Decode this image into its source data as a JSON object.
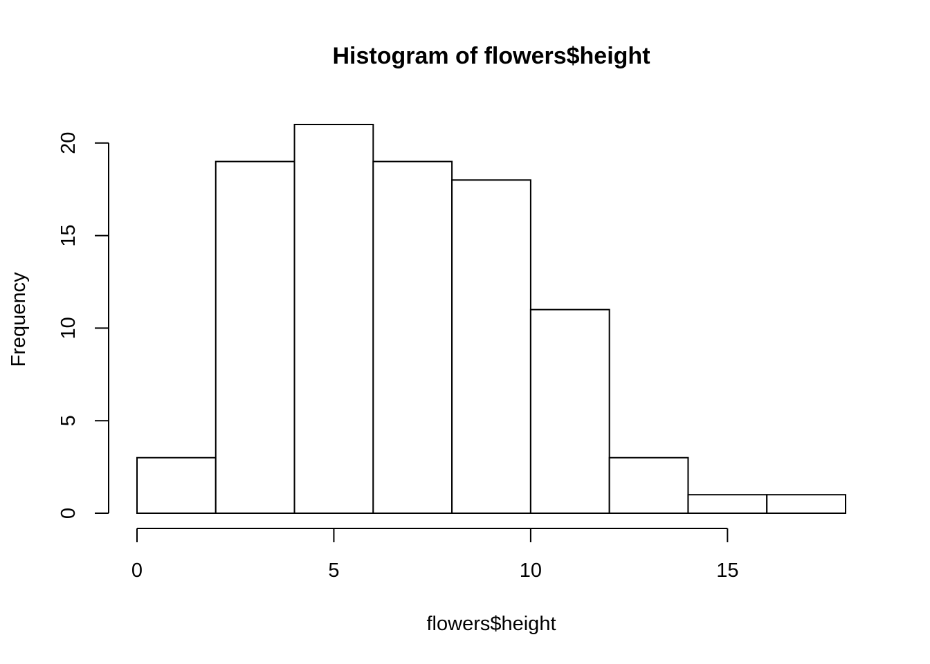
{
  "chart_data": {
    "type": "bar",
    "subtype": "histogram",
    "title": "Histogram of flowers$height",
    "xlabel": "flowers$height",
    "ylabel": "Frequency",
    "bins": [
      {
        "start": 0,
        "end": 2,
        "count": 3
      },
      {
        "start": 2,
        "end": 4,
        "count": 19
      },
      {
        "start": 4,
        "end": 6,
        "count": 21
      },
      {
        "start": 6,
        "end": 8,
        "count": 19
      },
      {
        "start": 8,
        "end": 10,
        "count": 18
      },
      {
        "start": 10,
        "end": 12,
        "count": 11
      },
      {
        "start": 12,
        "end": 14,
        "count": 3
      },
      {
        "start": 14,
        "end": 16,
        "count": 1
      },
      {
        "start": 16,
        "end": 18,
        "count": 1
      }
    ],
    "x_ticks": [
      0,
      5,
      10,
      15
    ],
    "y_ticks": [
      0,
      5,
      10,
      15,
      20
    ],
    "xlim": [
      0,
      18
    ],
    "ylim": [
      0,
      21
    ],
    "grid": false,
    "bar_fill": "#ffffff",
    "bar_stroke": "#000000"
  }
}
